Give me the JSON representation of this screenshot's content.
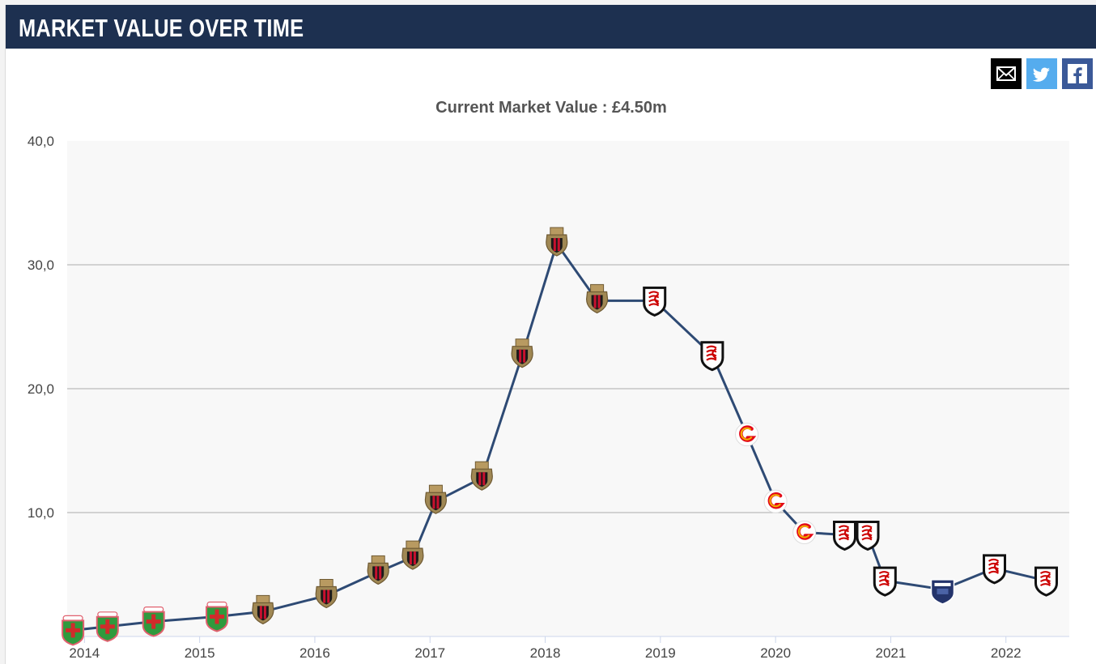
{
  "header": {
    "title": "MARKET VALUE OVER TIME"
  },
  "share": {
    "email_icon": "envelope-icon",
    "twitter_icon": "twitter-bird-icon",
    "facebook_icon": "facebook-f-icon"
  },
  "colors": {
    "header_bg": "#1d3050",
    "line": "#2e4a74",
    "plot_bg": "#f8f8f8",
    "grid": "#bbbbbb"
  },
  "chart_data": {
    "type": "line",
    "title": "Current Market Value : £4.50m",
    "xlabel": "",
    "ylabel": "",
    "ylim": [
      0,
      40
    ],
    "xlim": [
      2013.85,
      2022.55
    ],
    "yticks": [
      {
        "value": 10,
        "label": "10,0"
      },
      {
        "value": 20,
        "label": "20,0"
      },
      {
        "value": 30,
        "label": "30,0"
      },
      {
        "value": 40,
        "label": "40,0"
      }
    ],
    "xticks": [
      "2014",
      "2015",
      "2016",
      "2017",
      "2018",
      "2019",
      "2020",
      "2021",
      "2022"
    ],
    "grid": true,
    "series": [
      {
        "name": "Market value",
        "points": [
          {
            "x": 2013.9,
            "y": 0.5,
            "club": "green-club"
          },
          {
            "x": 2014.2,
            "y": 0.8,
            "club": "green-club"
          },
          {
            "x": 2014.6,
            "y": 1.2,
            "club": "green-club"
          },
          {
            "x": 2015.15,
            "y": 1.6,
            "club": "green-club"
          },
          {
            "x": 2015.55,
            "y": 2.0,
            "club": "nice"
          },
          {
            "x": 2016.1,
            "y": 3.3,
            "club": "nice"
          },
          {
            "x": 2016.55,
            "y": 5.2,
            "club": "nice"
          },
          {
            "x": 2016.85,
            "y": 6.4,
            "club": "nice"
          },
          {
            "x": 2017.05,
            "y": 10.9,
            "club": "nice"
          },
          {
            "x": 2017.45,
            "y": 12.8,
            "club": "nice"
          },
          {
            "x": 2017.8,
            "y": 22.7,
            "club": "nice"
          },
          {
            "x": 2018.1,
            "y": 31.7,
            "club": "nice"
          },
          {
            "x": 2018.45,
            "y": 27.1,
            "club": "nice"
          },
          {
            "x": 2018.95,
            "y": 27.1,
            "club": "fulham"
          },
          {
            "x": 2019.45,
            "y": 22.7,
            "club": "fulham"
          },
          {
            "x": 2019.75,
            "y": 16.3,
            "club": "galatasaray"
          },
          {
            "x": 2020.0,
            "y": 10.9,
            "club": "galatasaray"
          },
          {
            "x": 2020.25,
            "y": 8.4,
            "club": "galatasaray"
          },
          {
            "x": 2020.6,
            "y": 8.2,
            "club": "fulham"
          },
          {
            "x": 2020.8,
            "y": 8.2,
            "club": "fulham"
          },
          {
            "x": 2020.95,
            "y": 4.5,
            "club": "fulham"
          },
          {
            "x": 2021.45,
            "y": 3.8,
            "club": "blue-club"
          },
          {
            "x": 2021.9,
            "y": 5.5,
            "club": "fulham"
          },
          {
            "x": 2022.35,
            "y": 4.5,
            "club": "fulham"
          }
        ]
      }
    ]
  }
}
